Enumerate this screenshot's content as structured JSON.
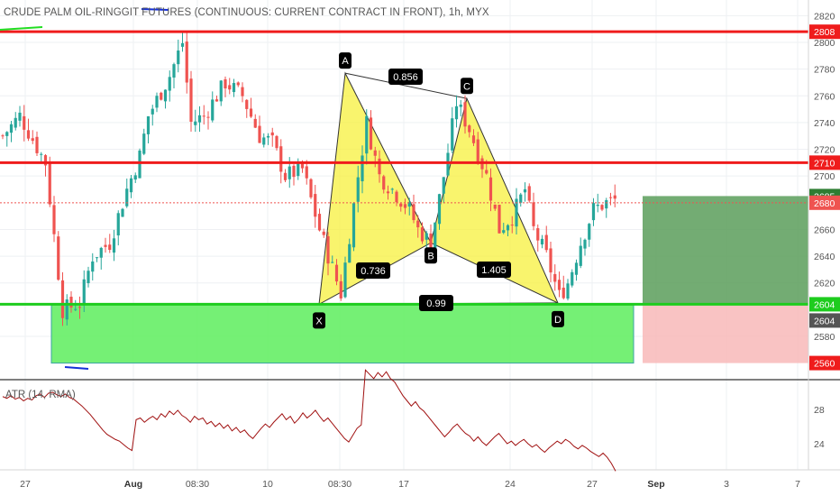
{
  "header": {
    "title": "CRUDE PALM OIL-RINGGIT FUTURES (CONTINUOUS: CURRENT CONTRACT IN FRONT), 1h, MYX"
  },
  "atr": {
    "label": "ATR (14, RMA)",
    "ticks": [
      "28",
      "24"
    ],
    "values": [
      29.5,
      29.3,
      29.6,
      29.2,
      29.4,
      29.0,
      29.3,
      29.1,
      29.6,
      29.8,
      29.4,
      29.9,
      30.0,
      29.7,
      29.5,
      29.8,
      29.4,
      29.2,
      28.8,
      28.4,
      27.9,
      27.4,
      26.8,
      26.2,
      25.6,
      25.1,
      24.8,
      24.5,
      24.3,
      23.9,
      23.5,
      23.2,
      26.8,
      27.0,
      26.5,
      26.9,
      27.2,
      26.8,
      27.5,
      27.1,
      27.8,
      27.4,
      27.9,
      27.3,
      27.0,
      26.5,
      27.2,
      26.8,
      27.0,
      26.3,
      26.6,
      26.0,
      26.4,
      25.8,
      26.2,
      25.5,
      25.9,
      25.3,
      25.6,
      25.0,
      24.6,
      25.2,
      25.8,
      26.3,
      25.9,
      26.5,
      27.0,
      27.5,
      26.8,
      27.2,
      26.4,
      26.9,
      27.6,
      27.0,
      27.4,
      27.9,
      27.2,
      26.6,
      27.0,
      26.4,
      25.8,
      25.2,
      24.6,
      24.2,
      25.0,
      25.8,
      26.2,
      32.6,
      32.1,
      31.6,
      32.3,
      31.8,
      32.4,
      31.6,
      31.2,
      30.4,
      29.6,
      29.0,
      28.4,
      28.9,
      28.2,
      27.8,
      27.2,
      26.6,
      26.0,
      25.4,
      24.8,
      25.3,
      25.9,
      26.3,
      25.7,
      25.2,
      24.9,
      24.3,
      24.8,
      24.2,
      23.8,
      24.3,
      24.8,
      25.2,
      24.6,
      24.0,
      24.3,
      23.8,
      24.2,
      24.5,
      24.0,
      23.6,
      23.9,
      23.4,
      23.0,
      23.5,
      23.9,
      24.3,
      24.0,
      24.5,
      24.2,
      23.7,
      23.4,
      23.8,
      23.5,
      23.1,
      22.8,
      22.5,
      22.9,
      22.4,
      21.7,
      20.8
    ]
  },
  "price_axis": {
    "ticks": [
      "2820",
      "2800",
      "2780",
      "2760",
      "2740",
      "2720",
      "2700",
      "2660",
      "2640",
      "2620",
      "2580"
    ],
    "labels": [
      {
        "text": "2808",
        "color": "#ef1c1c"
      },
      {
        "text": "2710",
        "color": "#ef1c1c"
      },
      {
        "text": "2685",
        "color": "#2e7d32"
      },
      {
        "text": "2680",
        "color": "#ef5350"
      },
      {
        "text": "2604",
        "color": "#1ecc1e"
      },
      {
        "text": "2604",
        "color": "#555555"
      },
      {
        "text": "2560",
        "color": "#ef1c1c"
      }
    ]
  },
  "time_axis": {
    "labels": [
      "27",
      "Aug",
      "08:30",
      "10",
      "08:30",
      "17",
      "24",
      "27",
      "Sep",
      "3",
      "7"
    ]
  },
  "pattern": {
    "points": [
      "X",
      "A",
      "B",
      "C",
      "D"
    ],
    "ratios": [
      "0.856",
      "0.736",
      "1.405",
      "0.99"
    ]
  },
  "chart_data": {
    "type": "candlestick",
    "title": "CRUDE PALM OIL-RINGGIT FUTURES (CONTINUOUS: CURRENT CONTRACT IN FRONT), 1h, MYX",
    "y_range": [
      2555,
      2825
    ],
    "horizontal_levels": [
      {
        "value": 2808,
        "color": "#ef1c1c"
      },
      {
        "value": 2710,
        "color": "#ef1c1c"
      },
      {
        "value": 2604,
        "color": "#1ecc1e"
      }
    ],
    "zones": [
      {
        "kind": "demand",
        "from": 2560,
        "to": 2604,
        "color": "#66ee66"
      },
      {
        "kind": "long-target",
        "from": 2604,
        "to": 2685,
        "color": "#5a9e5a"
      },
      {
        "kind": "long-stop",
        "from": 2560,
        "to": 2604,
        "color": "#f8b4b4"
      }
    ],
    "harmonic_points": [
      {
        "name": "X",
        "price": 2604
      },
      {
        "name": "A",
        "price": 2777
      },
      {
        "name": "B",
        "price": 2650
      },
      {
        "name": "C",
        "price": 2758
      },
      {
        "name": "D",
        "price": 2605
      }
    ],
    "close_anchors": [
      [
        0,
        2730
      ],
      [
        4,
        2745
      ],
      [
        10,
        2710
      ],
      [
        14,
        2600
      ],
      [
        18,
        2605
      ],
      [
        21,
        2640
      ],
      [
        25,
        2650
      ],
      [
        29,
        2690
      ],
      [
        32,
        2715
      ],
      [
        34,
        2745
      ],
      [
        39,
        2775
      ],
      [
        42,
        2800
      ],
      [
        44,
        2740
      ],
      [
        47,
        2745
      ],
      [
        52,
        2770
      ],
      [
        56,
        2760
      ],
      [
        60,
        2730
      ],
      [
        63,
        2725
      ],
      [
        66,
        2700
      ],
      [
        70,
        2705
      ],
      [
        74,
        2660
      ],
      [
        79,
        2612
      ],
      [
        83,
        2700
      ],
      [
        85,
        2740
      ],
      [
        88,
        2700
      ],
      [
        91,
        2690
      ],
      [
        95,
        2675
      ],
      [
        97,
        2660
      ],
      [
        100,
        2650
      ],
      [
        103,
        2700
      ],
      [
        106,
        2755
      ],
      [
        109,
        2735
      ],
      [
        113,
        2700
      ],
      [
        116,
        2660
      ],
      [
        119,
        2670
      ],
      [
        122,
        2690
      ],
      [
        124,
        2660
      ],
      [
        127,
        2640
      ],
      [
        130,
        2610
      ],
      [
        132,
        2620
      ],
      [
        135,
        2650
      ],
      [
        138,
        2675
      ],
      [
        141,
        2680
      ],
      [
        143,
        2682
      ]
    ],
    "last_price": 2680,
    "atr_series": "atr.values"
  }
}
